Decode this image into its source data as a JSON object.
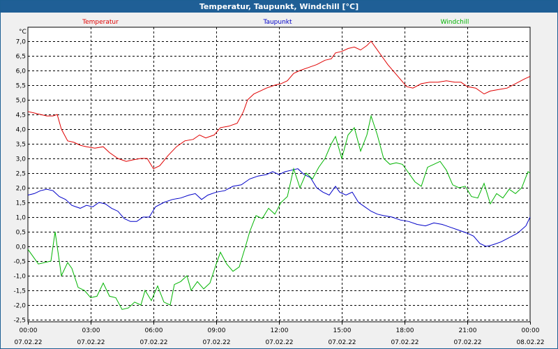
{
  "window": {
    "title": "Temperatur, Taupunkt, Windchill [°C]"
  },
  "colors": {
    "temperatur": "#e00000",
    "taupunkt": "#0000c8",
    "windchill": "#00b400",
    "grid": "#000000",
    "plot_bg": "#ffffff"
  },
  "chart_data": {
    "type": "line",
    "title": "Temperatur, Taupunkt, Windchill [°C]",
    "ylabel": "°C",
    "xlabel": "",
    "ylim": [
      -2.5,
      7.0
    ],
    "y_ticks": [
      "7,0",
      "6,5",
      "6,0",
      "5,5",
      "5,0",
      "4,5",
      "4,0",
      "3,5",
      "3,0",
      "2,5",
      "2,0",
      "1,5",
      "1,0",
      "0,5",
      "0,0",
      "-0,5",
      "-1,0",
      "-1,5",
      "-2,0",
      "-2,5"
    ],
    "x_range_hours": [
      0,
      24
    ],
    "x_ticks": [
      {
        "time": "00:00",
        "date": "07.02.22"
      },
      {
        "time": "03:00",
        "date": "07.02.22"
      },
      {
        "time": "06:00",
        "date": "07.02.22"
      },
      {
        "time": "09:00",
        "date": "07.02.22"
      },
      {
        "time": "12:00",
        "date": "07.02.22"
      },
      {
        "time": "15:00",
        "date": "07.02.22"
      },
      {
        "time": "18:00",
        "date": "07.02.22"
      },
      {
        "time": "21:00",
        "date": "07.02.22"
      },
      {
        "time": "00:00",
        "date": "08.02.22"
      }
    ],
    "legend": [
      "Temperatur",
      "Taupunkt",
      "Windchill"
    ],
    "legend_position": "top",
    "grid": true,
    "series": [
      {
        "name": "Temperatur",
        "points": [
          [
            0,
            4.6
          ],
          [
            0.3,
            4.55
          ],
          [
            0.6,
            4.5
          ],
          [
            0.9,
            4.45
          ],
          [
            1.2,
            4.45
          ],
          [
            1.4,
            4.5
          ],
          [
            1.6,
            4.0
          ],
          [
            1.9,
            3.6
          ],
          [
            2.2,
            3.55
          ],
          [
            2.5,
            3.45
          ],
          [
            2.8,
            3.4
          ],
          [
            3.2,
            3.35
          ],
          [
            3.6,
            3.4
          ],
          [
            3.9,
            3.2
          ],
          [
            4.3,
            3.0
          ],
          [
            4.7,
            2.9
          ],
          [
            5.0,
            2.95
          ],
          [
            5.4,
            3.0
          ],
          [
            5.7,
            3.0
          ],
          [
            6.0,
            2.65
          ],
          [
            6.3,
            2.75
          ],
          [
            6.7,
            3.1
          ],
          [
            7.1,
            3.4
          ],
          [
            7.5,
            3.6
          ],
          [
            7.9,
            3.65
          ],
          [
            8.2,
            3.8
          ],
          [
            8.5,
            3.7
          ],
          [
            8.9,
            3.8
          ],
          [
            9.2,
            4.05
          ],
          [
            9.6,
            4.1
          ],
          [
            10.0,
            4.2
          ],
          [
            10.3,
            4.6
          ],
          [
            10.5,
            5.0
          ],
          [
            10.8,
            5.2
          ],
          [
            11.1,
            5.3
          ],
          [
            11.4,
            5.4
          ],
          [
            11.8,
            5.5
          ],
          [
            12.1,
            5.55
          ],
          [
            12.4,
            5.65
          ],
          [
            12.7,
            5.9
          ],
          [
            13.0,
            6.0
          ],
          [
            13.4,
            6.1
          ],
          [
            13.8,
            6.2
          ],
          [
            14.2,
            6.35
          ],
          [
            14.5,
            6.4
          ],
          [
            14.7,
            6.6
          ],
          [
            15.0,
            6.65
          ],
          [
            15.3,
            6.75
          ],
          [
            15.6,
            6.8
          ],
          [
            15.9,
            6.7
          ],
          [
            16.2,
            6.85
          ],
          [
            16.4,
            7.0
          ],
          [
            16.6,
            6.8
          ],
          [
            16.9,
            6.5
          ],
          [
            17.2,
            6.2
          ],
          [
            17.5,
            5.95
          ],
          [
            17.8,
            5.7
          ],
          [
            18.1,
            5.45
          ],
          [
            18.4,
            5.4
          ],
          [
            18.8,
            5.55
          ],
          [
            19.2,
            5.6
          ],
          [
            19.6,
            5.6
          ],
          [
            20.0,
            5.65
          ],
          [
            20.4,
            5.6
          ],
          [
            20.7,
            5.6
          ],
          [
            21.0,
            5.45
          ],
          [
            21.4,
            5.4
          ],
          [
            21.8,
            5.2
          ],
          [
            22.1,
            5.3
          ],
          [
            22.5,
            5.35
          ],
          [
            22.9,
            5.4
          ],
          [
            23.3,
            5.55
          ],
          [
            23.7,
            5.7
          ],
          [
            24.0,
            5.8
          ]
        ]
      },
      {
        "name": "Taupunkt",
        "points": [
          [
            0,
            1.75
          ],
          [
            0.3,
            1.8
          ],
          [
            0.6,
            1.9
          ],
          [
            0.9,
            1.95
          ],
          [
            1.2,
            1.9
          ],
          [
            1.5,
            1.7
          ],
          [
            1.8,
            1.6
          ],
          [
            2.1,
            1.4
          ],
          [
            2.5,
            1.3
          ],
          [
            2.8,
            1.4
          ],
          [
            3.1,
            1.35
          ],
          [
            3.4,
            1.5
          ],
          [
            3.7,
            1.45
          ],
          [
            4.0,
            1.3
          ],
          [
            4.3,
            1.2
          ],
          [
            4.6,
            0.95
          ],
          [
            4.9,
            0.85
          ],
          [
            5.2,
            0.85
          ],
          [
            5.5,
            1.0
          ],
          [
            5.8,
            1.0
          ],
          [
            6.1,
            1.35
          ],
          [
            6.5,
            1.5
          ],
          [
            6.9,
            1.6
          ],
          [
            7.3,
            1.65
          ],
          [
            7.7,
            1.75
          ],
          [
            8.0,
            1.8
          ],
          [
            8.3,
            1.6
          ],
          [
            8.6,
            1.75
          ],
          [
            9.0,
            1.85
          ],
          [
            9.4,
            1.9
          ],
          [
            9.8,
            2.05
          ],
          [
            10.2,
            2.1
          ],
          [
            10.6,
            2.3
          ],
          [
            11.0,
            2.4
          ],
          [
            11.4,
            2.45
          ],
          [
            11.7,
            2.55
          ],
          [
            12.0,
            2.45
          ],
          [
            12.3,
            2.55
          ],
          [
            12.6,
            2.6
          ],
          [
            12.9,
            2.65
          ],
          [
            13.2,
            2.45
          ],
          [
            13.5,
            2.35
          ],
          [
            13.8,
            2.0
          ],
          [
            14.1,
            1.85
          ],
          [
            14.4,
            1.75
          ],
          [
            14.7,
            2.05
          ],
          [
            14.9,
            1.85
          ],
          [
            15.2,
            1.75
          ],
          [
            15.5,
            1.85
          ],
          [
            15.8,
            1.5
          ],
          [
            16.1,
            1.35
          ],
          [
            16.4,
            1.2
          ],
          [
            16.7,
            1.1
          ],
          [
            17.0,
            1.05
          ],
          [
            17.4,
            1.0
          ],
          [
            17.8,
            0.9
          ],
          [
            18.2,
            0.85
          ],
          [
            18.6,
            0.75
          ],
          [
            19.0,
            0.7
          ],
          [
            19.4,
            0.8
          ],
          [
            19.8,
            0.75
          ],
          [
            20.2,
            0.65
          ],
          [
            20.6,
            0.55
          ],
          [
            21.0,
            0.45
          ],
          [
            21.3,
            0.35
          ],
          [
            21.6,
            0.1
          ],
          [
            21.9,
            0.0
          ],
          [
            22.2,
            0.05
          ],
          [
            22.6,
            0.15
          ],
          [
            23.0,
            0.3
          ],
          [
            23.4,
            0.45
          ],
          [
            23.8,
            0.7
          ],
          [
            24.0,
            1.0
          ]
        ]
      },
      {
        "name": "Windchill",
        "points": [
          [
            0,
            -0.1
          ],
          [
            0.2,
            -0.3
          ],
          [
            0.5,
            -0.6
          ],
          [
            0.8,
            -0.55
          ],
          [
            1.1,
            -0.5
          ],
          [
            1.3,
            0.5
          ],
          [
            1.6,
            -1.0
          ],
          [
            1.9,
            -0.55
          ],
          [
            2.1,
            -0.75
          ],
          [
            2.4,
            -1.4
          ],
          [
            2.7,
            -1.5
          ],
          [
            3.0,
            -1.75
          ],
          [
            3.3,
            -1.7
          ],
          [
            3.6,
            -1.25
          ],
          [
            3.9,
            -1.7
          ],
          [
            4.2,
            -1.75
          ],
          [
            4.5,
            -2.15
          ],
          [
            4.8,
            -2.1
          ],
          [
            5.1,
            -1.9
          ],
          [
            5.4,
            -2.0
          ],
          [
            5.6,
            -1.5
          ],
          [
            5.9,
            -1.85
          ],
          [
            6.2,
            -1.35
          ],
          [
            6.5,
            -1.9
          ],
          [
            6.8,
            -2.0
          ],
          [
            7.0,
            -1.3
          ],
          [
            7.3,
            -1.2
          ],
          [
            7.6,
            -1.0
          ],
          [
            7.8,
            -1.5
          ],
          [
            8.1,
            -1.2
          ],
          [
            8.4,
            -1.45
          ],
          [
            8.7,
            -1.25
          ],
          [
            9.0,
            -0.6
          ],
          [
            9.2,
            -0.2
          ],
          [
            9.5,
            -0.6
          ],
          [
            9.8,
            -0.85
          ],
          [
            10.1,
            -0.7
          ],
          [
            10.4,
            0.0
          ],
          [
            10.6,
            0.5
          ],
          [
            10.9,
            1.05
          ],
          [
            11.2,
            0.95
          ],
          [
            11.5,
            1.3
          ],
          [
            11.8,
            1.1
          ],
          [
            12.1,
            1.5
          ],
          [
            12.4,
            1.7
          ],
          [
            12.7,
            2.65
          ],
          [
            13.0,
            2.0
          ],
          [
            13.3,
            2.5
          ],
          [
            13.6,
            2.3
          ],
          [
            13.9,
            2.7
          ],
          [
            14.2,
            3.0
          ],
          [
            14.5,
            3.5
          ],
          [
            14.7,
            3.75
          ],
          [
            15.0,
            3.0
          ],
          [
            15.3,
            3.8
          ],
          [
            15.6,
            4.05
          ],
          [
            15.9,
            3.25
          ],
          [
            16.2,
            3.8
          ],
          [
            16.4,
            4.45
          ],
          [
            16.7,
            3.8
          ],
          [
            17.0,
            3.0
          ],
          [
            17.3,
            2.8
          ],
          [
            17.6,
            2.85
          ],
          [
            17.9,
            2.8
          ],
          [
            18.2,
            2.5
          ],
          [
            18.5,
            2.2
          ],
          [
            18.8,
            2.05
          ],
          [
            19.1,
            2.7
          ],
          [
            19.4,
            2.8
          ],
          [
            19.7,
            2.9
          ],
          [
            20.0,
            2.6
          ],
          [
            20.3,
            2.1
          ],
          [
            20.6,
            2.0
          ],
          [
            20.9,
            2.05
          ],
          [
            21.2,
            1.7
          ],
          [
            21.5,
            1.65
          ],
          [
            21.8,
            2.15
          ],
          [
            22.1,
            1.45
          ],
          [
            22.4,
            1.8
          ],
          [
            22.7,
            1.65
          ],
          [
            23.0,
            1.95
          ],
          [
            23.3,
            1.8
          ],
          [
            23.6,
            2.0
          ],
          [
            23.9,
            2.55
          ],
          [
            24.0,
            2.5
          ]
        ]
      }
    ]
  }
}
